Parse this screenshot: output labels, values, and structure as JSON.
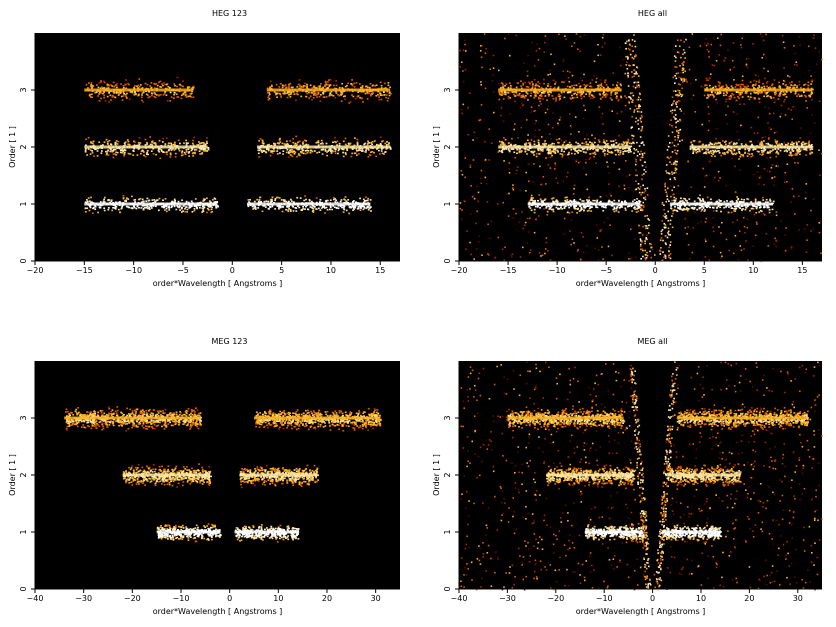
{
  "chart_data": [
    {
      "type": "heatmap",
      "title": "HEG 123",
      "xlabel": "order*Wavelength [ Angstroms ]",
      "ylabel": "Order [ 1 ]",
      "xlim": [
        -20,
        17
      ],
      "ylim": [
        0,
        4
      ],
      "xticks": [
        "−20",
        "−15",
        "−10",
        "−5",
        "0",
        "5",
        "10",
        "15"
      ],
      "xtick_values": [
        -20,
        -15,
        -10,
        -5,
        0,
        5,
        10,
        15
      ],
      "yticks": [
        "0",
        "1",
        "2",
        "3"
      ],
      "ytick_values": [
        0,
        1,
        2,
        3
      ],
      "bands": [
        {
          "order": 1,
          "x_ranges": [
            [
              -15,
              -1.5
            ],
            [
              1.5,
              14
            ]
          ],
          "peak_intensity": 1.0
        },
        {
          "order": 2,
          "x_ranges": [
            [
              -15,
              -2.5
            ],
            [
              2.5,
              16
            ]
          ],
          "peak_intensity": 0.75
        },
        {
          "order": 3,
          "x_ranges": [
            [
              -15,
              -4
            ],
            [
              3.5,
              16
            ]
          ],
          "peak_intensity": 0.55
        }
      ],
      "background_scatter": 0.0
    },
    {
      "type": "heatmap",
      "title": "HEG all",
      "xlabel": "order*Wavelength [ Angstroms ]",
      "ylabel": "Order [ 1 ]",
      "xlim": [
        -20,
        17
      ],
      "ylim": [
        0,
        4
      ],
      "xticks": [
        "−20",
        "−15",
        "−10",
        "−5",
        "0",
        "5",
        "10",
        "15"
      ],
      "xtick_values": [
        -20,
        -15,
        -10,
        -5,
        0,
        5,
        10,
        15
      ],
      "yticks": [
        "0",
        "1",
        "2",
        "3"
      ],
      "ytick_values": [
        0,
        1,
        2,
        3
      ],
      "bands": [
        {
          "order": 1,
          "x_ranges": [
            [
              -13,
              -1.5
            ],
            [
              1.5,
              12
            ]
          ],
          "peak_intensity": 1.0
        },
        {
          "order": 2,
          "x_ranges": [
            [
              -16,
              -2.5
            ],
            [
              3.5,
              16
            ]
          ],
          "peak_intensity": 0.75
        },
        {
          "order": 3,
          "x_ranges": [
            [
              -16,
              -3.5
            ],
            [
              5,
              16
            ]
          ],
          "peak_intensity": 0.55
        }
      ],
      "background_scatter": 0.35
    },
    {
      "type": "heatmap",
      "title": "MEG 123",
      "xlabel": "order*Wavelength [ Angstroms ]",
      "ylabel": "Order [ 1 ]",
      "xlim": [
        -40,
        35
      ],
      "ylim": [
        0,
        4
      ],
      "xticks": [
        "−40",
        "−30",
        "−20",
        "−10",
        "0",
        "10",
        "20",
        "30"
      ],
      "xtick_values": [
        -40,
        -30,
        -20,
        -10,
        0,
        10,
        20,
        30
      ],
      "yticks": [
        "0",
        "1",
        "2",
        "3"
      ],
      "ytick_values": [
        0,
        1,
        2,
        3
      ],
      "bands": [
        {
          "order": 1,
          "x_ranges": [
            [
              -15,
              -2
            ],
            [
              1,
              14
            ]
          ],
          "peak_intensity": 1.0
        },
        {
          "order": 2,
          "x_ranges": [
            [
              -22,
              -4
            ],
            [
              2,
              18
            ]
          ],
          "peak_intensity": 0.7
        },
        {
          "order": 3,
          "x_ranges": [
            [
              -34,
              -6
            ],
            [
              5,
              31
            ]
          ],
          "peak_intensity": 0.65
        }
      ],
      "background_scatter": 0.0
    },
    {
      "type": "heatmap",
      "title": "MEG all",
      "xlabel": "order*Wavelength [ Angstroms ]",
      "ylabel": "Order [ 1 ]",
      "xlim": [
        -40,
        35
      ],
      "ylim": [
        0,
        4
      ],
      "xticks": [
        "−40",
        "−30",
        "−20",
        "−10",
        "0",
        "10",
        "20",
        "30"
      ],
      "xtick_values": [
        -40,
        -30,
        -20,
        -10,
        0,
        10,
        20,
        30
      ],
      "yticks": [
        "0",
        "1",
        "2",
        "3"
      ],
      "ytick_values": [
        0,
        1,
        2,
        3
      ],
      "bands": [
        {
          "order": 1,
          "x_ranges": [
            [
              -14,
              -2
            ],
            [
              2,
              14
            ]
          ],
          "peak_intensity": 1.0
        },
        {
          "order": 2,
          "x_ranges": [
            [
              -22,
              -4
            ],
            [
              3,
              18
            ]
          ],
          "peak_intensity": 0.7
        },
        {
          "order": 3,
          "x_ranges": [
            [
              -30,
              -6
            ],
            [
              5,
              32
            ]
          ],
          "peak_intensity": 0.65
        }
      ],
      "background_scatter": 0.4
    }
  ],
  "colors": {
    "plot_background": "#000000",
    "hot_low": "#8b1a00",
    "hot_mid": "#ff9a1a",
    "hot_high": "#ffffff"
  }
}
